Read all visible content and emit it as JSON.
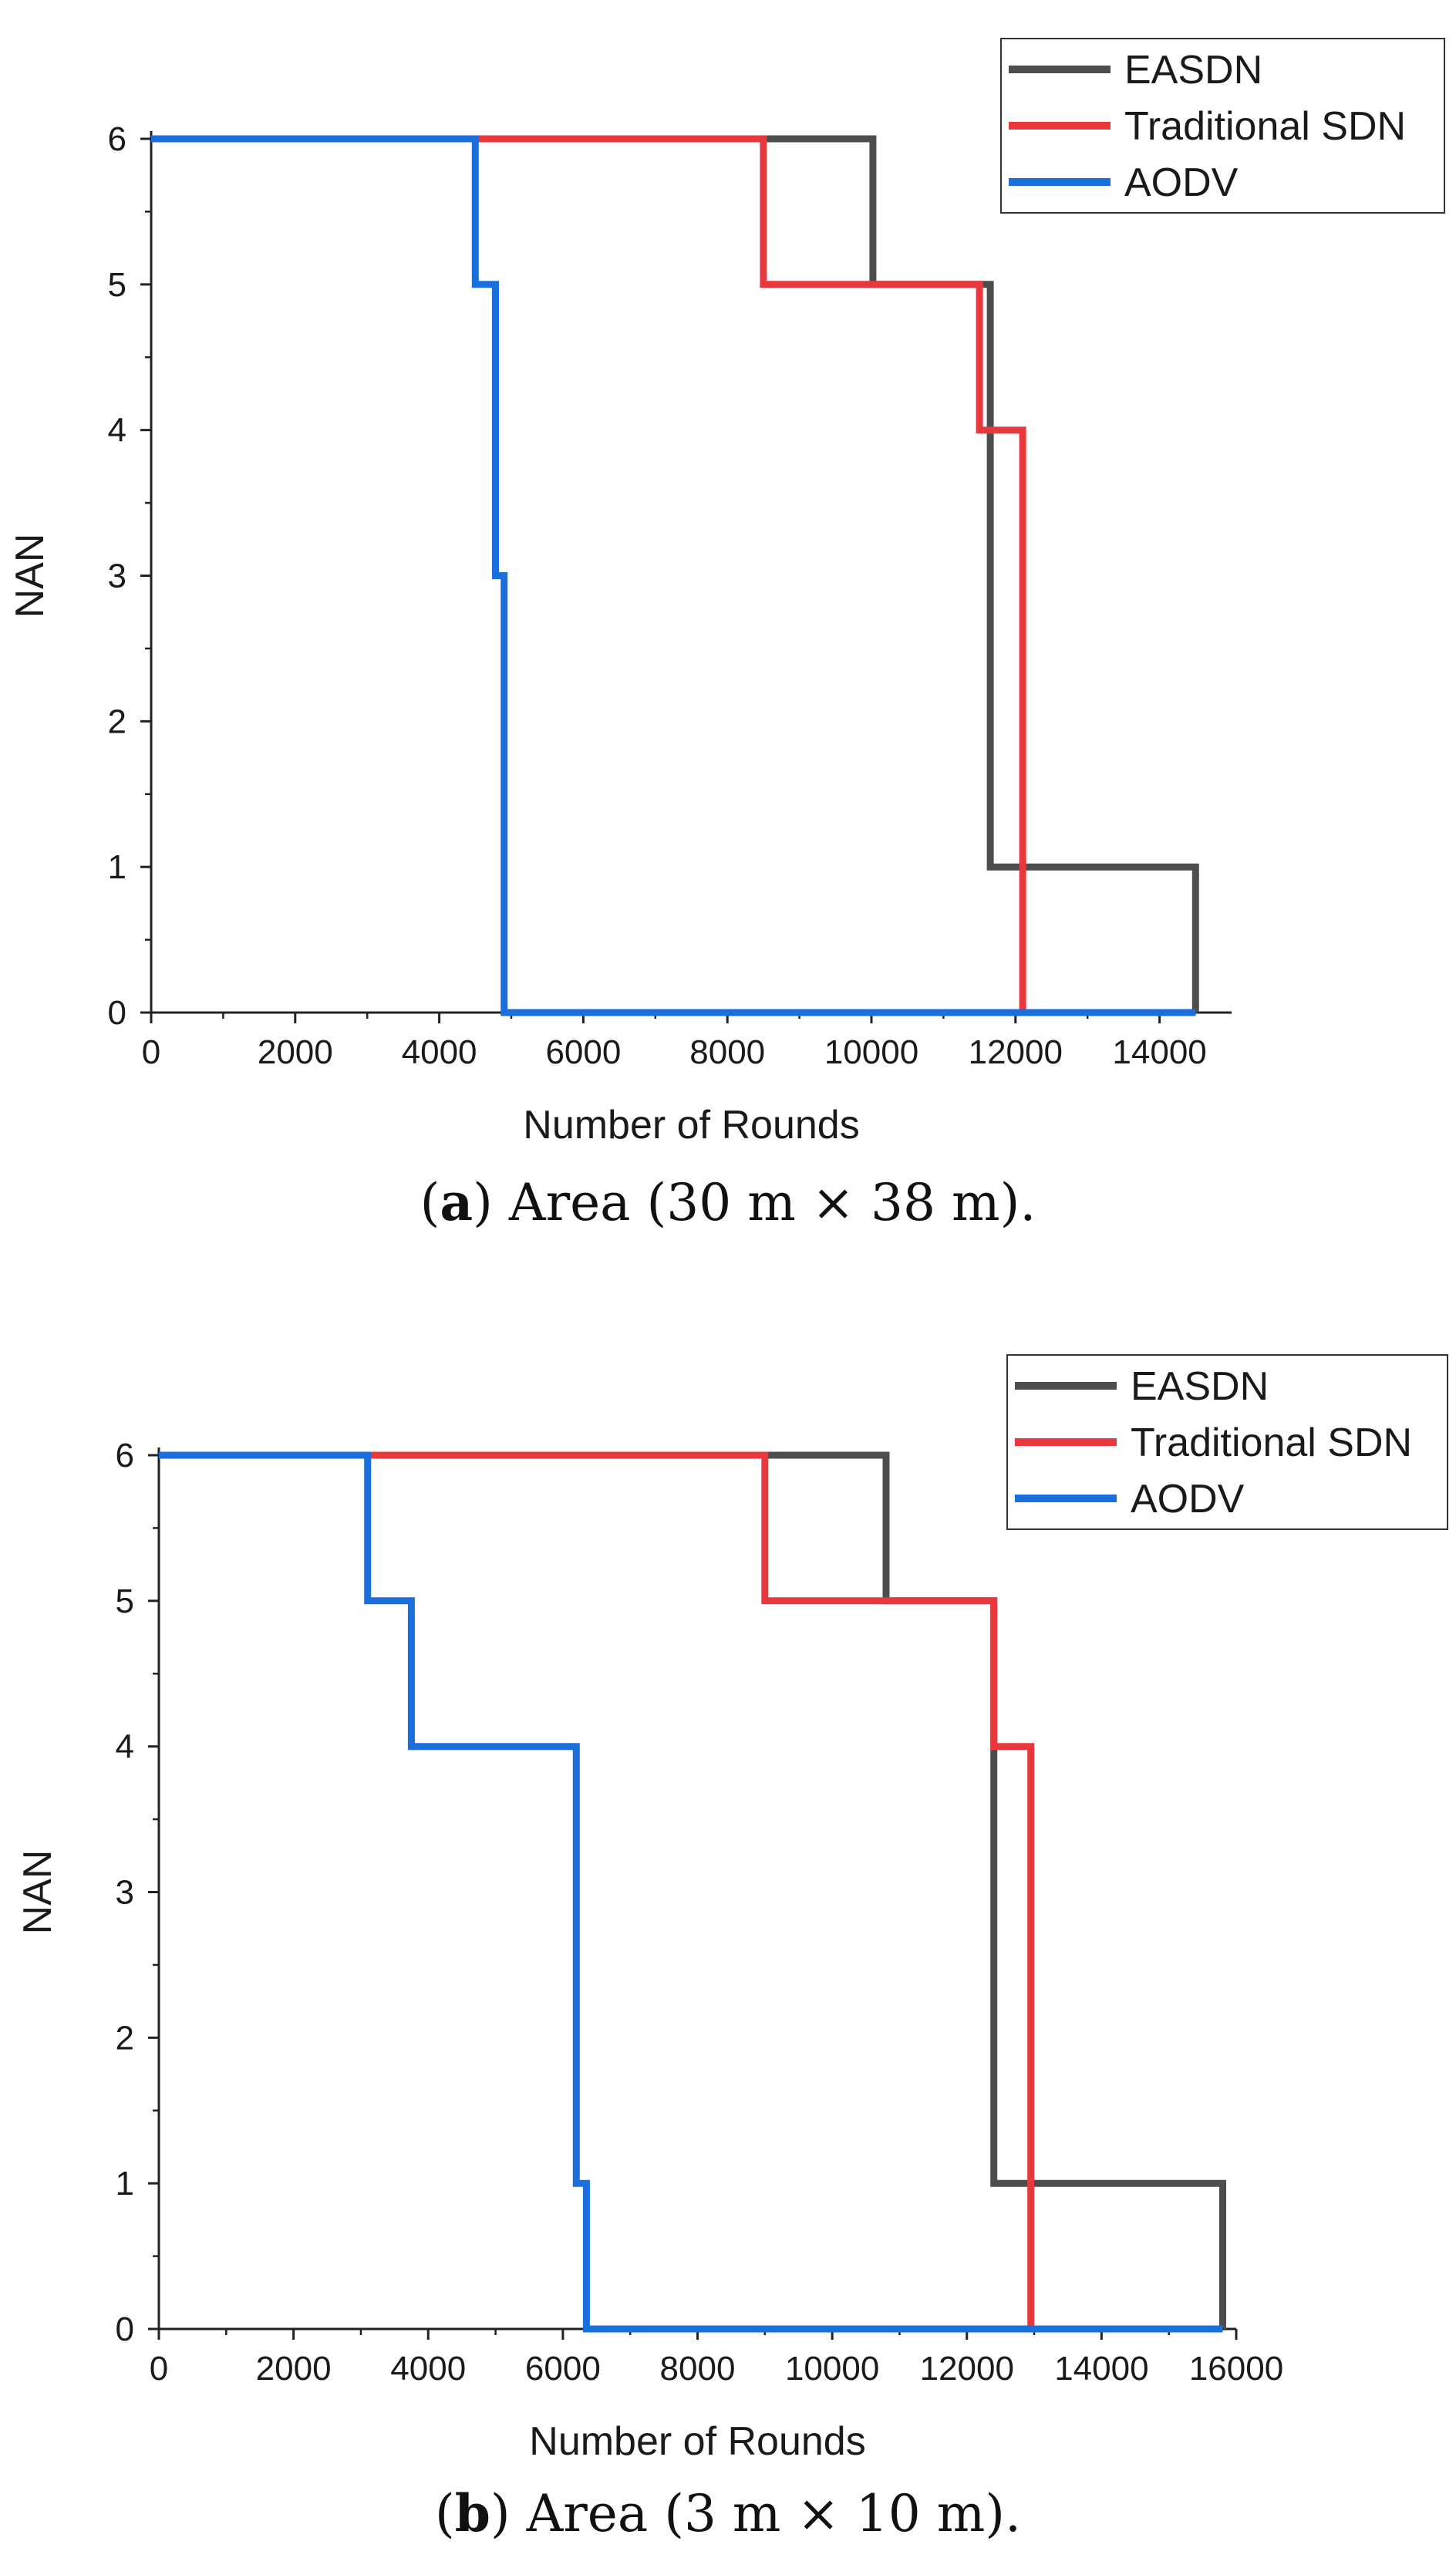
{
  "charts": [
    {
      "caption": {
        "letter": "a",
        "text": "Area (30 m × 38 m)."
      },
      "chart_data": {
        "type": "line",
        "step": true,
        "xlabel": "Number of Rounds",
        "ylabel": "NAN",
        "xlim": [
          0,
          15000
        ],
        "ylim": [
          0,
          6
        ],
        "xticks": [
          0,
          2000,
          4000,
          6000,
          8000,
          10000,
          12000,
          14000
        ],
        "yticks": [
          0,
          1,
          2,
          3,
          4,
          5,
          6
        ],
        "legend_position": "top-right",
        "series": [
          {
            "name": "EASDN",
            "color": "#4d4d4d",
            "x": [
              0,
              10020,
              10020,
              11650,
              11650,
              14500,
              14500
            ],
            "y": [
              6,
              6,
              5,
              5,
              1,
              1,
              0
            ]
          },
          {
            "name": "Traditional SDN",
            "color": "#e8383d",
            "x": [
              0,
              8500,
              8500,
              11500,
              11500,
              12100,
              12100
            ],
            "y": [
              6,
              6,
              5,
              5,
              4,
              4,
              0
            ]
          },
          {
            "name": "AODV",
            "color": "#1a6fdc",
            "x": [
              0,
              4500,
              4500,
              4780,
              4780,
              4900,
              4900,
              14500
            ],
            "y": [
              6,
              6,
              5,
              5,
              3,
              3,
              0,
              0
            ]
          }
        ]
      }
    },
    {
      "caption": {
        "letter": "b",
        "text": "Area (3 m × 10 m)."
      },
      "chart_data": {
        "type": "line",
        "step": true,
        "xlabel": "Number of Rounds",
        "ylabel": "NAN",
        "xlim": [
          0,
          16000
        ],
        "ylim": [
          0,
          6
        ],
        "xticks": [
          0,
          2000,
          4000,
          6000,
          8000,
          10000,
          12000,
          14000,
          16000
        ],
        "yticks": [
          0,
          1,
          2,
          3,
          4,
          5,
          6
        ],
        "legend_position": "top-right",
        "series": [
          {
            "name": "EASDN",
            "color": "#4d4d4d",
            "x": [
              0,
              10800,
              10800,
              12400,
              12400,
              15800,
              15800
            ],
            "y": [
              6,
              6,
              5,
              5,
              1,
              1,
              0
            ]
          },
          {
            "name": "Traditional SDN",
            "color": "#e8383d",
            "x": [
              0,
              9000,
              9000,
              12400,
              12400,
              12950,
              12950
            ],
            "y": [
              6,
              6,
              5,
              5,
              4,
              4,
              0
            ]
          },
          {
            "name": "AODV",
            "color": "#1a6fdc",
            "x": [
              0,
              3100,
              3100,
              3750,
              3750,
              6200,
              6200,
              6350,
              6350,
              15800
            ],
            "y": [
              6,
              6,
              5,
              5,
              4,
              4,
              1,
              1,
              0,
              0
            ]
          }
        ]
      }
    }
  ]
}
